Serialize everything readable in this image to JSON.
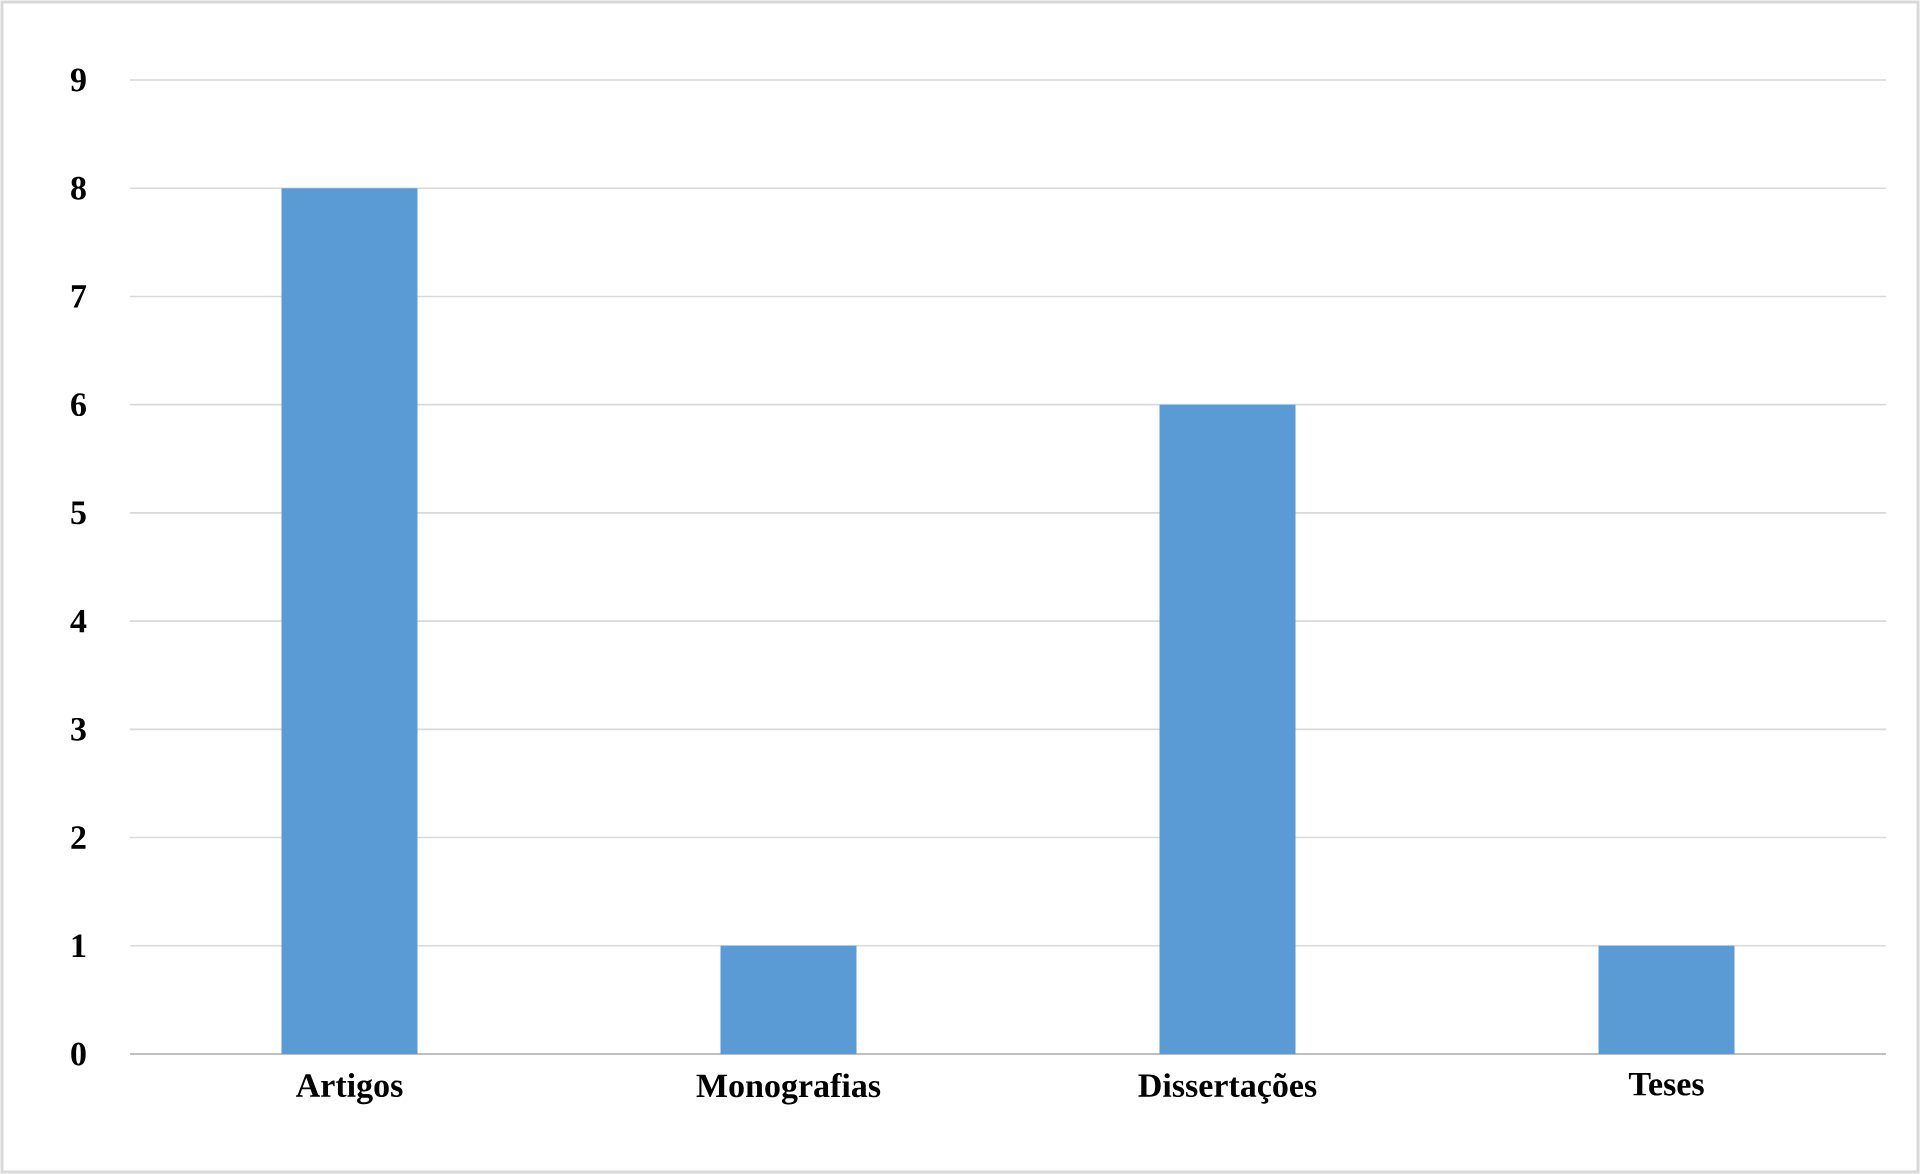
{
  "chart_data": {
    "type": "bar",
    "categories": [
      "Artigos",
      "Monografias",
      "Dissertações",
      "Teses"
    ],
    "values": [
      8,
      1,
      6,
      1
    ],
    "color": "#5b9bd5",
    "ylim": [
      0,
      9
    ],
    "yticks": [
      0,
      1,
      2,
      3,
      4,
      5,
      6,
      7,
      8,
      9
    ],
    "grid": "y"
  }
}
